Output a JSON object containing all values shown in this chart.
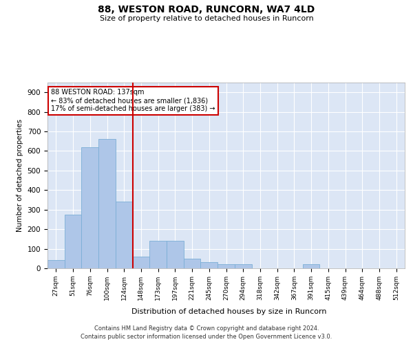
{
  "title1": "88, WESTON ROAD, RUNCORN, WA7 4LD",
  "title2": "Size of property relative to detached houses in Runcorn",
  "xlabel": "Distribution of detached houses by size in Runcorn",
  "ylabel": "Number of detached properties",
  "bin_labels": [
    "27sqm",
    "51sqm",
    "76sqm",
    "100sqm",
    "124sqm",
    "148sqm",
    "173sqm",
    "197sqm",
    "221sqm",
    "245sqm",
    "270sqm",
    "294sqm",
    "318sqm",
    "342sqm",
    "367sqm",
    "391sqm",
    "415sqm",
    "439sqm",
    "464sqm",
    "488sqm",
    "512sqm"
  ],
  "bar_heights": [
    42,
    275,
    620,
    660,
    340,
    60,
    140,
    140,
    50,
    30,
    20,
    20,
    0,
    0,
    0,
    20,
    0,
    0,
    0,
    0,
    0
  ],
  "bar_color": "#aec6e8",
  "bar_edge_color": "#7aaed6",
  "background_color": "#dce6f5",
  "grid_color": "#ffffff",
  "vline_color": "#cc0000",
  "annotation_text": "88 WESTON ROAD: 137sqm\n← 83% of detached houses are smaller (1,836)\n17% of semi-detached houses are larger (383) →",
  "annotation_box_color": "#ffffff",
  "annotation_box_edge": "#cc0000",
  "ylim": [
    0,
    950
  ],
  "yticks": [
    0,
    100,
    200,
    300,
    400,
    500,
    600,
    700,
    800,
    900
  ],
  "footer1": "Contains HM Land Registry data © Crown copyright and database right 2024.",
  "footer2": "Contains public sector information licensed under the Open Government Licence v3.0."
}
